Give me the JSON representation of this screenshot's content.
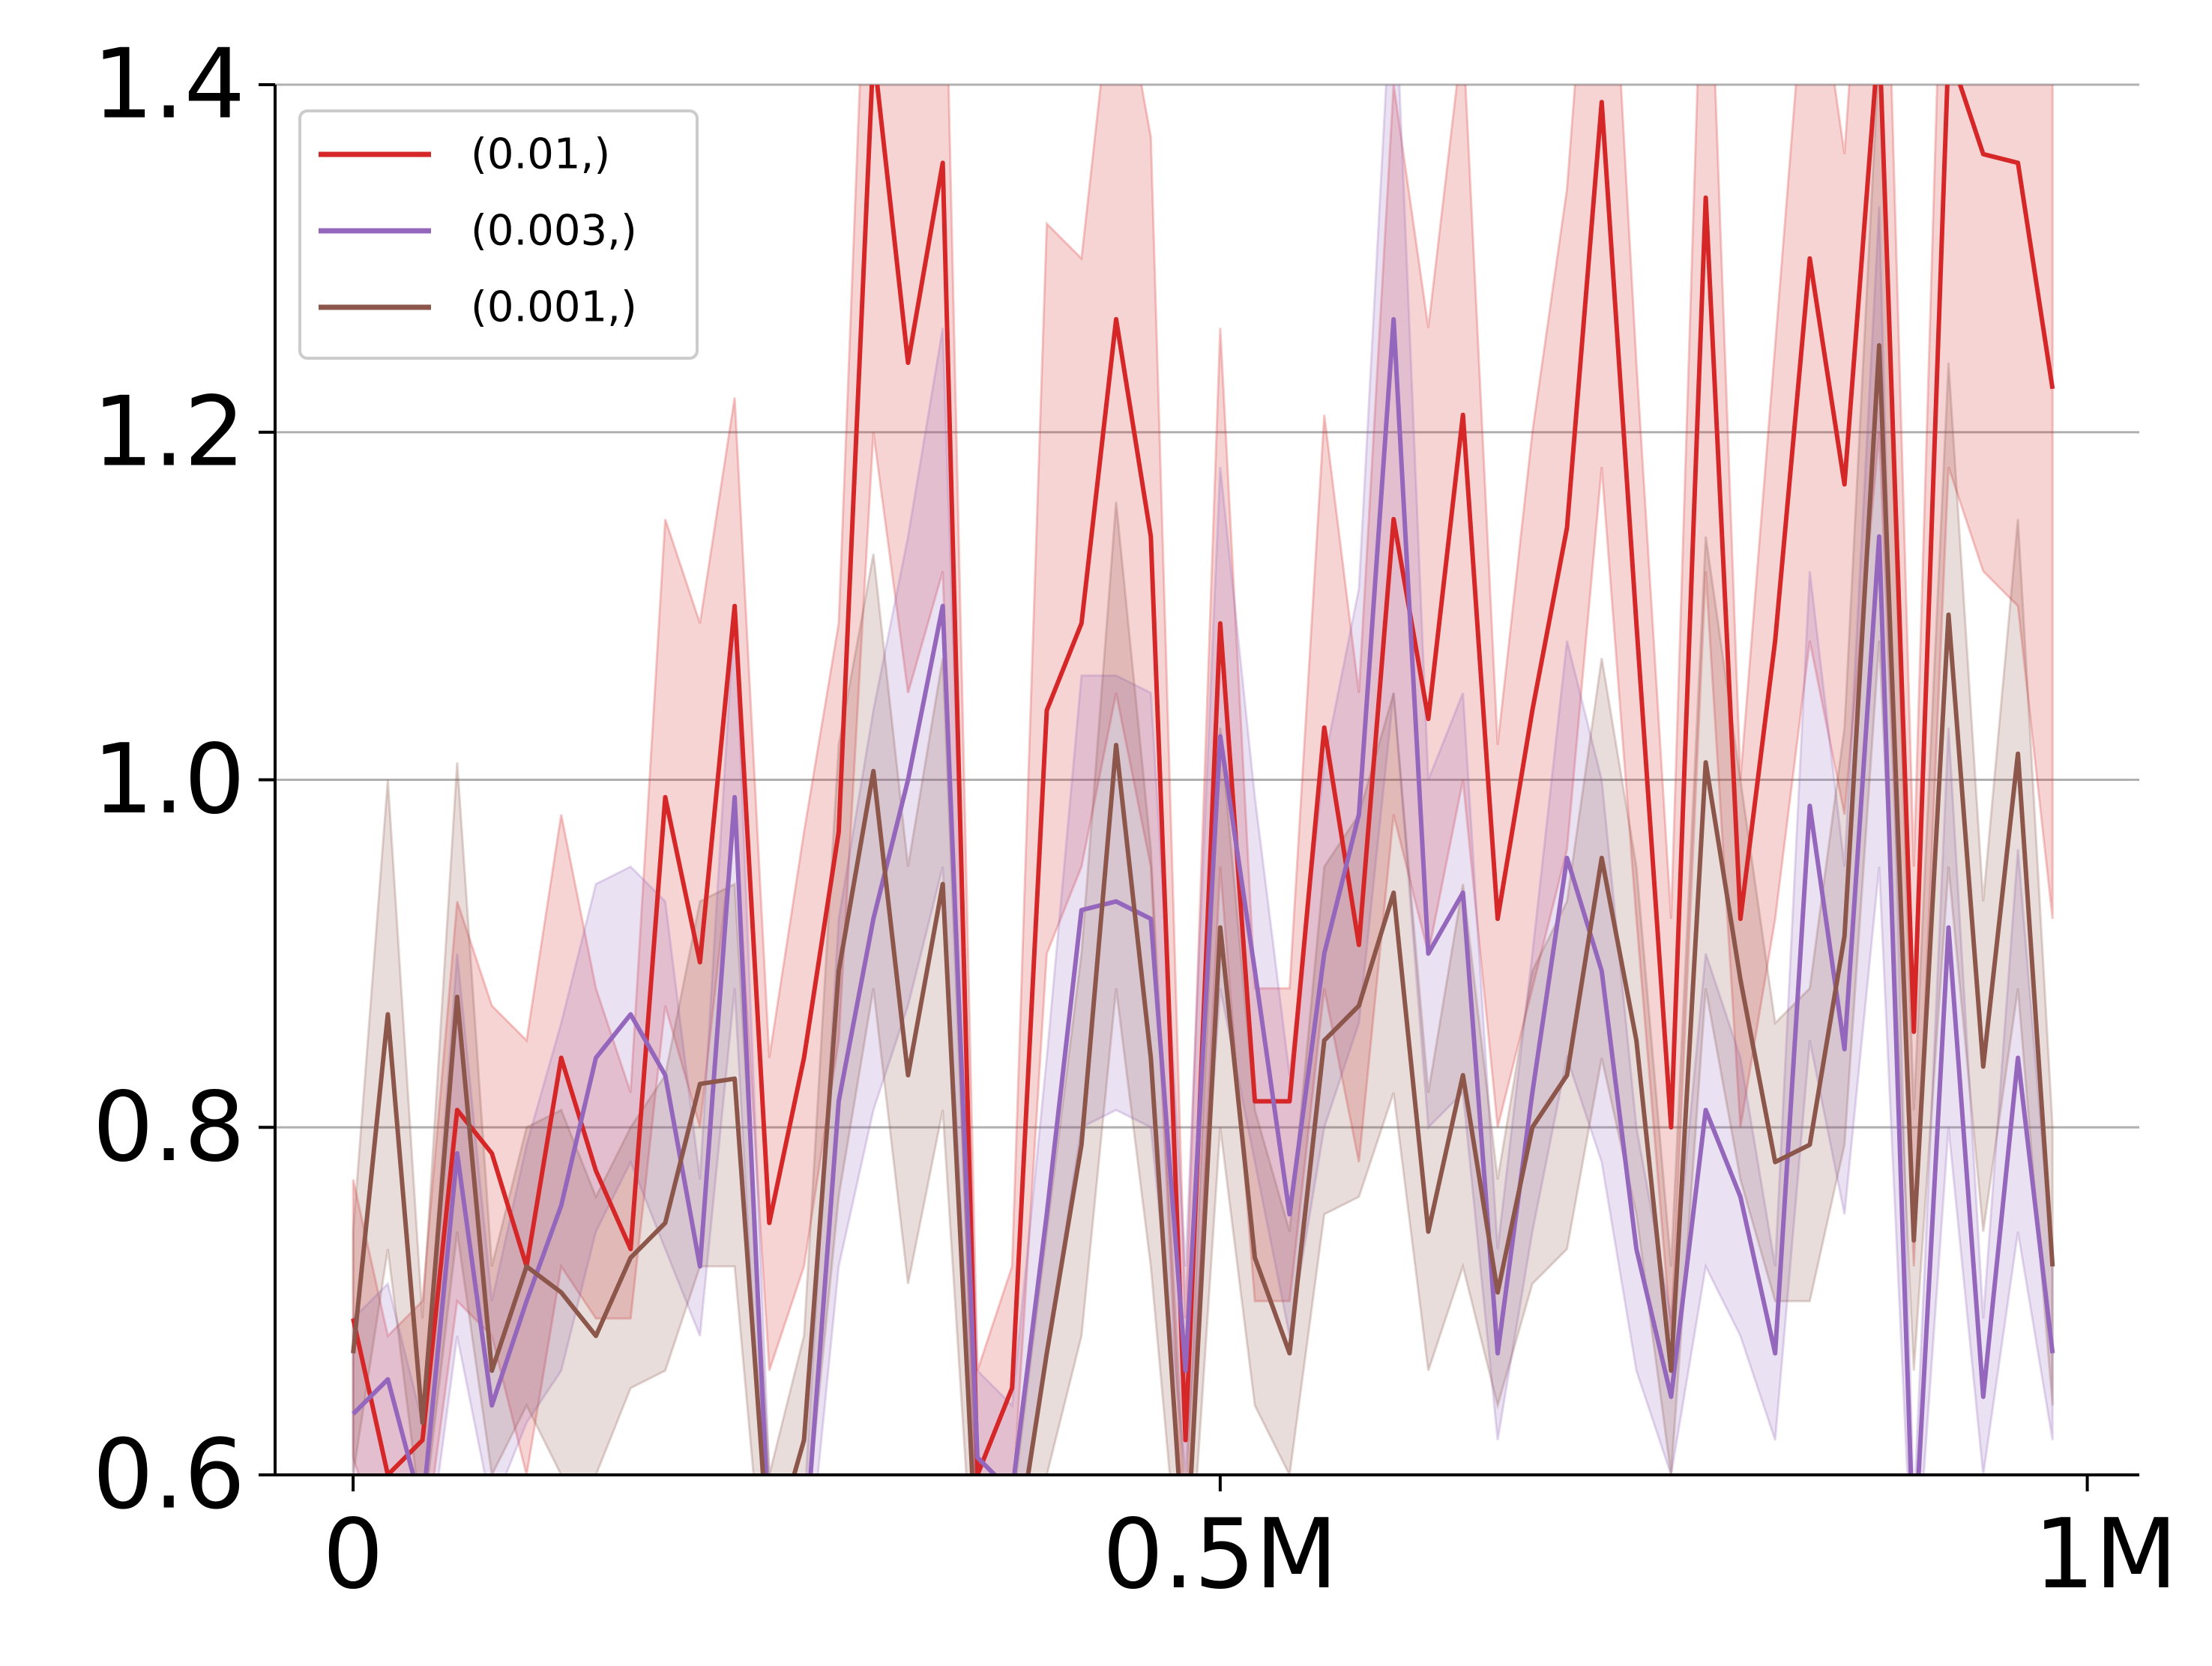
{
  "chart_data": {
    "type": "line",
    "title": "",
    "xlabel": "",
    "ylabel": "",
    "xlim": [
      -45000,
      1030000
    ],
    "ylim": [
      0.6,
      1.4
    ],
    "grid": "y-major",
    "legend_placement": "top-left",
    "xticks": [
      {
        "value": 0,
        "label": "0"
      },
      {
        "value": 500000,
        "label": "0.5M"
      },
      {
        "value": 1000000,
        "label": "1M"
      }
    ],
    "yticks": [
      {
        "value": 0.6,
        "label": "0.6"
      },
      {
        "value": 0.8,
        "label": "0.8"
      },
      {
        "value": 1.0,
        "label": "1.0"
      },
      {
        "value": 1.2,
        "label": "1.2"
      },
      {
        "value": 1.4,
        "label": "1.4"
      }
    ],
    "x": [
      0,
      20000,
      40000,
      60000,
      80000,
      100000,
      120000,
      140000,
      160000,
      180000,
      200000,
      220000,
      240000,
      260000,
      280000,
      300000,
      320000,
      340000,
      360000,
      380000,
      400000,
      420000,
      440000,
      460000,
      480000,
      500000,
      520000,
      540000,
      560000,
      580000,
      600000,
      620000,
      640000,
      660000,
      680000,
      700000,
      720000,
      740000,
      760000,
      780000,
      800000,
      820000,
      840000,
      860000,
      880000,
      900000,
      920000,
      940000,
      960000,
      980000
    ],
    "series": [
      {
        "name": "(0.01,)",
        "color": "#d62728",
        "values": [
          0.69,
          0.6,
          0.62,
          0.81,
          0.785,
          0.72,
          0.84,
          0.775,
          0.73,
          0.99,
          0.895,
          1.1,
          0.745,
          0.84,
          0.97,
          1.42,
          1.24,
          1.355,
          0.6,
          0.65,
          1.04,
          1.09,
          1.265,
          1.14,
          0.62,
          1.09,
          0.815,
          0.815,
          1.03,
          0.905,
          1.15,
          1.035,
          1.21,
          0.92,
          1.04,
          1.145,
          1.39,
          1.09,
          0.8,
          1.335,
          0.92,
          1.08,
          1.3,
          1.17,
          1.43,
          0.855,
          1.42,
          1.36,
          1.355,
          1.225
        ],
        "lower": [
          0.61,
          0.55,
          0.55,
          0.7,
          0.68,
          0.6,
          0.72,
          0.69,
          0.69,
          0.87,
          0.8,
          0.98,
          0.66,
          0.72,
          0.85,
          1.2,
          1.05,
          1.12,
          0.55,
          0.58,
          0.9,
          0.95,
          1.05,
          0.95,
          0.55,
          0.95,
          0.7,
          0.7,
          0.88,
          0.78,
          0.98,
          0.9,
          1.0,
          0.8,
          0.88,
          0.96,
          1.18,
          0.92,
          0.68,
          1.12,
          0.8,
          0.92,
          1.08,
          0.98,
          1.2,
          0.72,
          1.18,
          1.12,
          1.1,
          0.92
        ],
        "upper": [
          0.77,
          0.68,
          0.7,
          0.93,
          0.87,
          0.85,
          0.98,
          0.88,
          0.82,
          1.15,
          1.09,
          1.22,
          0.84,
          0.97,
          1.09,
          1.6,
          1.42,
          1.55,
          0.66,
          0.72,
          1.32,
          1.3,
          1.48,
          1.37,
          0.69,
          1.26,
          0.88,
          0.88,
          1.21,
          1.05,
          1.4,
          1.26,
          1.43,
          1.02,
          1.2,
          1.34,
          1.6,
          1.24,
          0.92,
          1.55,
          1.0,
          1.25,
          1.5,
          1.36,
          1.65,
          0.95,
          1.62,
          1.56,
          1.6,
          1.5
        ]
      },
      {
        "name": "(0.003,)",
        "color": "#9467bd",
        "values": [
          0.635,
          0.655,
          0.58,
          0.785,
          0.64,
          0.7,
          0.755,
          0.84,
          0.865,
          0.83,
          0.72,
          0.99,
          0.56,
          0.55,
          0.815,
          0.92,
          1.0,
          1.1,
          0.61,
          0.59,
          0.75,
          0.925,
          0.93,
          0.92,
          0.66,
          1.025,
          0.89,
          0.75,
          0.9,
          0.98,
          1.265,
          0.9,
          0.935,
          0.67,
          0.82,
          0.955,
          0.89,
          0.73,
          0.645,
          0.81,
          0.76,
          0.67,
          0.985,
          0.845,
          1.14,
          0.55,
          0.915,
          0.645,
          0.84,
          0.67
        ],
        "lower": [
          0.58,
          0.6,
          0.53,
          0.68,
          0.58,
          0.63,
          0.66,
          0.74,
          0.78,
          0.73,
          0.68,
          0.88,
          0.52,
          0.52,
          0.72,
          0.81,
          0.87,
          0.95,
          0.57,
          0.55,
          0.67,
          0.8,
          0.81,
          0.8,
          0.6,
          0.88,
          0.78,
          0.68,
          0.8,
          0.86,
          1.05,
          0.8,
          0.82,
          0.62,
          0.74,
          0.84,
          0.78,
          0.66,
          0.6,
          0.72,
          0.68,
          0.62,
          0.85,
          0.75,
          0.95,
          0.52,
          0.8,
          0.6,
          0.74,
          0.62
        ],
        "upper": [
          0.69,
          0.71,
          0.63,
          0.9,
          0.7,
          0.79,
          0.86,
          0.94,
          0.95,
          0.93,
          0.77,
          1.1,
          0.6,
          0.58,
          0.92,
          1.04,
          1.14,
          1.26,
          0.66,
          0.64,
          0.84,
          1.06,
          1.06,
          1.05,
          0.72,
          1.18,
          0.99,
          0.83,
          1.01,
          1.11,
          1.48,
          1.0,
          1.05,
          0.73,
          0.9,
          1.08,
          1.0,
          0.8,
          0.69,
          0.9,
          0.84,
          0.72,
          1.12,
          0.95,
          1.33,
          0.58,
          1.03,
          0.69,
          0.96,
          0.72
        ]
      },
      {
        "name": "(0.001,)",
        "color": "#8c564b",
        "values": [
          0.67,
          0.865,
          0.63,
          0.875,
          0.66,
          0.72,
          0.705,
          0.68,
          0.725,
          0.745,
          0.825,
          0.828,
          0.55,
          0.62,
          0.89,
          1.005,
          0.83,
          0.94,
          0.54,
          0.54,
          0.67,
          0.79,
          1.02,
          0.84,
          0.54,
          0.915,
          0.725,
          0.67,
          0.85,
          0.87,
          0.935,
          0.74,
          0.83,
          0.705,
          0.8,
          0.83,
          0.955,
          0.85,
          0.66,
          1.01,
          0.885,
          0.78,
          0.79,
          0.91,
          1.25,
          0.735,
          1.095,
          0.835,
          1.015,
          0.72
        ],
        "lower": [
          0.6,
          0.73,
          0.57,
          0.74,
          0.6,
          0.64,
          0.6,
          0.6,
          0.65,
          0.66,
          0.72,
          0.72,
          0.5,
          0.56,
          0.76,
          0.88,
          0.71,
          0.81,
          0.5,
          0.5,
          0.6,
          0.68,
          0.88,
          0.72,
          0.5,
          0.8,
          0.64,
          0.6,
          0.75,
          0.76,
          0.82,
          0.66,
          0.72,
          0.64,
          0.71,
          0.73,
          0.84,
          0.75,
          0.6,
          0.88,
          0.77,
          0.7,
          0.7,
          0.79,
          1.08,
          0.66,
          0.95,
          0.74,
          0.88,
          0.64
        ],
        "upper": [
          0.74,
          1.0,
          0.69,
          1.01,
          0.72,
          0.8,
          0.81,
          0.76,
          0.8,
          0.83,
          0.93,
          0.94,
          0.6,
          0.68,
          1.02,
          1.13,
          0.95,
          1.07,
          0.58,
          0.58,
          0.74,
          0.9,
          1.16,
          0.96,
          0.58,
          1.03,
          0.81,
          0.74,
          0.95,
          0.98,
          1.05,
          0.82,
          0.94,
          0.77,
          0.89,
          0.93,
          1.07,
          0.95,
          0.72,
          1.14,
          1.0,
          0.86,
          0.88,
          1.03,
          1.42,
          0.81,
          1.24,
          0.93,
          1.15,
          0.8
        ]
      }
    ]
  }
}
